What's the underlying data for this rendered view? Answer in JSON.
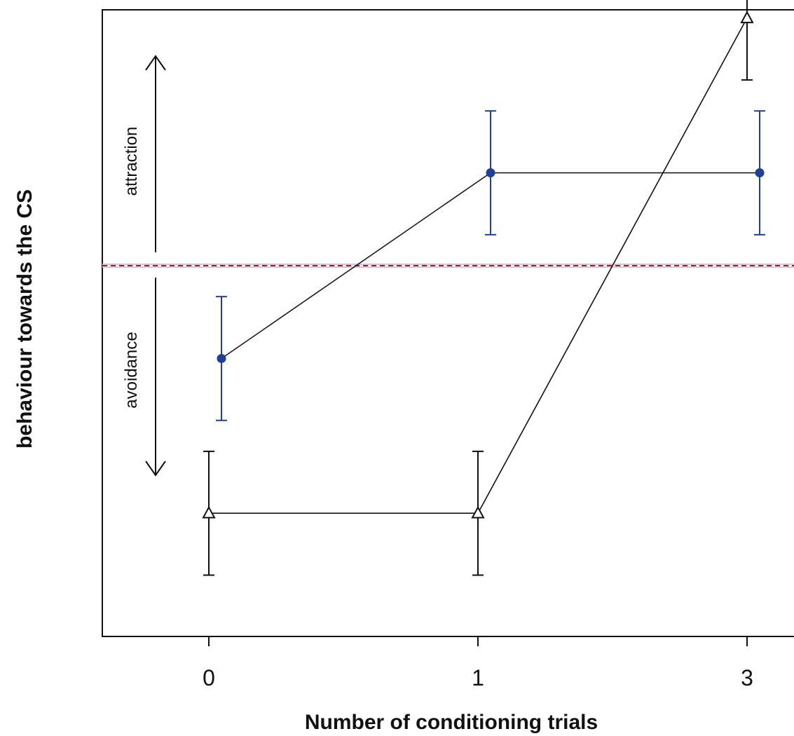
{
  "chart_data": {
    "type": "line",
    "xlabel": "Number of conditioning trials",
    "ylabel": "behaviour towards the CS",
    "categories": [
      "0",
      "1",
      "3"
    ],
    "reference_line": {
      "y": 0,
      "style": "dashed",
      "color": "#b2182b"
    },
    "y_range": [
      -4.0,
      3.0
    ],
    "series": [
      {
        "marker": "filled-circle",
        "color": "#1f3f99",
        "line_color": "#1a1a2e",
        "values": [
          -0.75,
          0.75,
          0.75
        ],
        "error": [
          0.5,
          0.5,
          0.5
        ]
      },
      {
        "marker": "open-triangle",
        "color": "#111111",
        "line_color": "#111111",
        "values": [
          -2.0,
          -2.0,
          2.0
        ],
        "error": [
          0.5,
          0.5,
          0.5
        ]
      }
    ],
    "annotations": {
      "attraction": "attraction",
      "avoidance": "avoidance"
    },
    "grid": false,
    "legend": "none"
  }
}
